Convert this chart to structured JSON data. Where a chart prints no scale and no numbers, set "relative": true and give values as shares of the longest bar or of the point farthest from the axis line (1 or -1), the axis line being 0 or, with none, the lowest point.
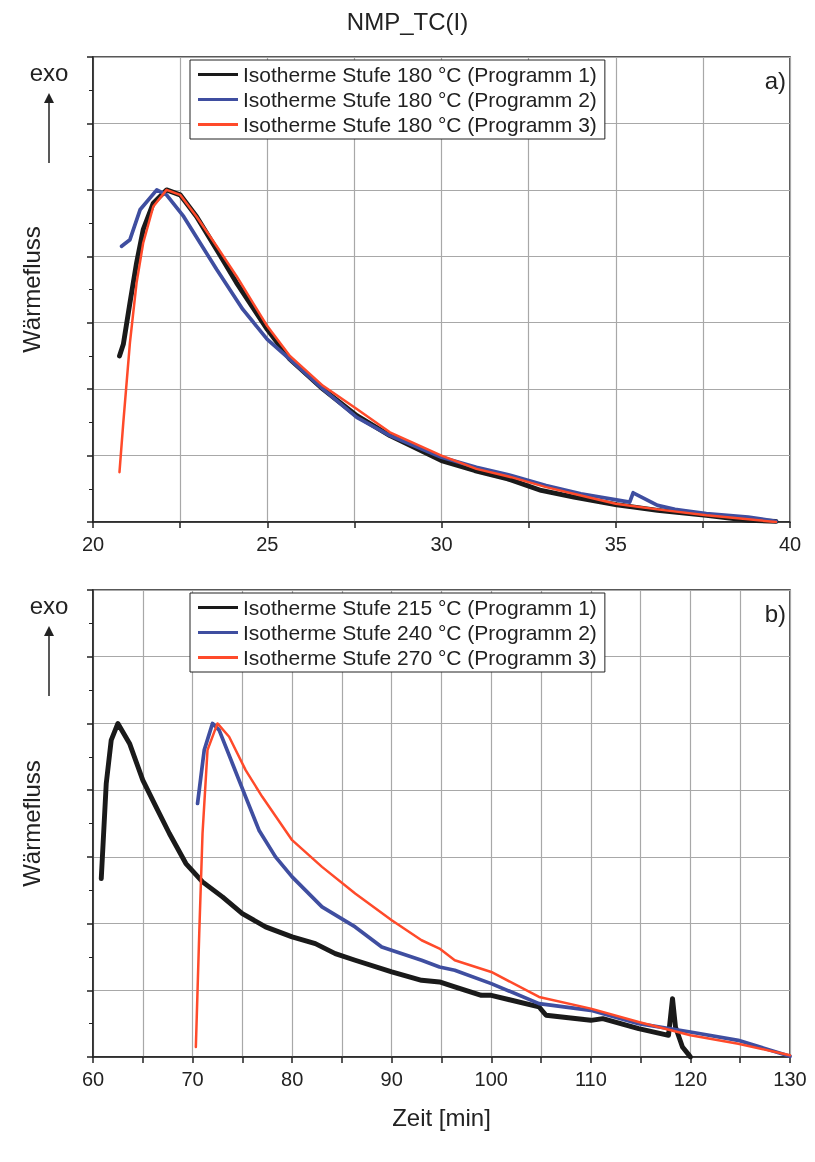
{
  "chart_data": [
    {
      "type": "line",
      "title": "NMP_TC(I)",
      "ylabel": "Wärmefluss",
      "annotations": [
        "a)",
        "exo"
      ],
      "relative": true,
      "grid": true,
      "legend": "top",
      "marker": "none",
      "line_style": "solid",
      "xlim": [
        20,
        40
      ],
      "xticks": [
        20,
        25,
        30,
        35,
        40
      ],
      "series": [
        {
          "name": "Isotherme Stufe 180 °C (Programm 1)",
          "color": "#1a1a1a",
          "x": [
            20.76,
            20.87,
            21.06,
            21.25,
            21.44,
            21.73,
            22.11,
            22.5,
            22.97,
            23.55,
            24.12,
            25,
            25.65,
            26.6,
            27.57,
            28.52,
            30,
            30.95,
            31.9,
            32.86,
            33.8,
            35.03,
            36.2,
            37.6,
            38.8,
            39.6
          ],
          "values": [
            0.5,
            0.535,
            0.66,
            0.78,
            0.88,
            0.96,
            1.0,
            0.985,
            0.92,
            0.82,
            0.72,
            0.58,
            0.49,
            0.4,
            0.32,
            0.26,
            0.185,
            0.155,
            0.13,
            0.095,
            0.075,
            0.052,
            0.035,
            0.02,
            0.005,
            0.002
          ]
        },
        {
          "name": "Isotherme Stufe 180 °C (Programm 2)",
          "color": "#3f4ea0",
          "x": [
            20.82,
            21.06,
            21.35,
            21.83,
            22.11,
            22.6,
            23.55,
            24.3,
            25,
            25.65,
            26.6,
            27.57,
            28.52,
            30,
            31,
            32,
            33,
            34,
            35.4,
            35.5,
            36.2,
            36.7,
            37.6,
            38.8,
            39.6
          ],
          "values": [
            0.83,
            0.85,
            0.94,
            1.0,
            0.985,
            0.92,
            0.76,
            0.64,
            0.55,
            0.49,
            0.4,
            0.315,
            0.26,
            0.195,
            0.165,
            0.14,
            0.11,
            0.085,
            0.06,
            0.088,
            0.05,
            0.038,
            0.025,
            0.015,
            0.002
          ]
        },
        {
          "name": "Isotherme Stufe 180 °C (Programm 3)",
          "color": "#ff4a2a",
          "x": [
            20.76,
            20.87,
            21.06,
            21.25,
            21.44,
            21.73,
            22.11,
            22.5,
            22.97,
            23.55,
            24.12,
            25,
            25.65,
            26.6,
            27.57,
            28.52,
            30,
            31,
            32,
            33,
            34,
            35,
            36.2,
            37.6,
            38.8,
            39.6
          ],
          "values": [
            0.15,
            0.3,
            0.54,
            0.72,
            0.84,
            0.95,
            1.0,
            0.985,
            0.92,
            0.83,
            0.74,
            0.59,
            0.5,
            0.41,
            0.34,
            0.27,
            0.2,
            0.16,
            0.135,
            0.105,
            0.08,
            0.055,
            0.038,
            0.02,
            0.008,
            0.0
          ]
        }
      ]
    },
    {
      "type": "line",
      "xlabel": "Zeit [min]",
      "ylabel": "Wärmefluss",
      "annotations": [
        "b)",
        "exo"
      ],
      "relative": true,
      "grid": true,
      "legend": "top",
      "marker": "none",
      "line_style": "solid",
      "xlim": [
        60,
        130
      ],
      "xticks": [
        60,
        70,
        80,
        90,
        100,
        110,
        120,
        130
      ],
      "series": [
        {
          "name": "Isotherme Stufe 215 °C (Programm 1)",
          "color": "#1a1a1a",
          "x": [
            60.83,
            61.33,
            61.83,
            62.5,
            63.67,
            65,
            66.33,
            67.67,
            69.33,
            71,
            73,
            75,
            77.33,
            80,
            82.33,
            84.33,
            86.33,
            90,
            93,
            94.8,
            96.33,
            99,
            100,
            104.8,
            105.5,
            110,
            111.2,
            114.8,
            117.8,
            118.2,
            118.5,
            119.2,
            119.8,
            120
          ],
          "values": [
            0.535,
            0.82,
            0.95,
            1.0,
            0.94,
            0.83,
            0.75,
            0.67,
            0.58,
            0.525,
            0.48,
            0.43,
            0.39,
            0.36,
            0.34,
            0.31,
            0.29,
            0.255,
            0.23,
            0.225,
            0.21,
            0.185,
            0.185,
            0.15,
            0.125,
            0.11,
            0.115,
            0.085,
            0.065,
            0.175,
            0.09,
            0.03,
            0.008,
            0.0
          ]
        },
        {
          "name": "Isotherme Stufe 240 °C (Programm 2)",
          "color": "#3f4ea0",
          "x": [
            70.5,
            71.17,
            72,
            72.67,
            74,
            75.33,
            76.67,
            78.33,
            80,
            83,
            86.33,
            89,
            93,
            94.8,
            96.33,
            100,
            104.8,
            110,
            114.8,
            120,
            124.8,
            130
          ],
          "values": [
            0.76,
            0.92,
            1.0,
            0.98,
            0.88,
            0.78,
            0.68,
            0.6,
            0.54,
            0.45,
            0.39,
            0.33,
            0.29,
            0.27,
            0.26,
            0.22,
            0.16,
            0.14,
            0.1,
            0.075,
            0.05,
            0.002
          ]
        },
        {
          "name": "Isotherme Stufe 270 °C (Programm 3)",
          "color": "#ff4a2a",
          "x": [
            70.33,
            70.67,
            71,
            71.5,
            72.5,
            73.67,
            75.33,
            77,
            80,
            83,
            86.33,
            90,
            93,
            94.8,
            96.33,
            100,
            104.8,
            110,
            114.8,
            120,
            124.8,
            130
          ],
          "values": [
            0.03,
            0.37,
            0.67,
            0.92,
            1.0,
            0.96,
            0.86,
            0.78,
            0.65,
            0.57,
            0.49,
            0.41,
            0.35,
            0.325,
            0.29,
            0.255,
            0.18,
            0.145,
            0.105,
            0.065,
            0.04,
            0.005
          ]
        }
      ]
    }
  ]
}
